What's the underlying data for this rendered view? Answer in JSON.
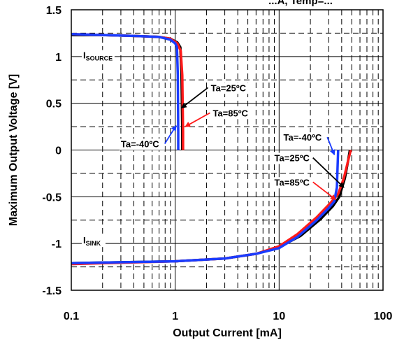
{
  "chart_data": {
    "type": "line",
    "title": "...A, Temp=...",
    "xlabel": "Output Current [mA]",
    "ylabel": "Maximum Output Voltage [V]",
    "xscale": "log",
    "xlim": [
      0.1,
      100
    ],
    "ylim": [
      -1.5,
      1.5
    ],
    "grid": true,
    "x_ticks": [
      "0.1",
      "1",
      "10",
      "100"
    ],
    "y_ticks": [
      "1.5",
      "1",
      "0.5",
      "0",
      "-0.5",
      "-1",
      "-1.5"
    ],
    "colors": {
      "-40": "#1a3cff",
      "25": "#000000",
      "85": "#ff1a1a"
    },
    "series": [
      {
        "name": "Ta=25ºC",
        "color": "#000000",
        "x": [
          0.1,
          0.2,
          0.4,
          0.7,
          0.9,
          1.05,
          1.12,
          1.15,
          1.17,
          1.17
        ],
        "y": [
          1.23,
          1.23,
          1.22,
          1.21,
          1.19,
          1.15,
          1.1,
          0.8,
          0.2,
          0
        ]
      },
      {
        "name": "Ta=85ºC",
        "color": "#ff1a1a",
        "x": [
          0.1,
          0.2,
          0.4,
          0.7,
          0.9,
          1.05,
          1.13,
          1.17,
          1.19,
          1.19
        ],
        "y": [
          1.24,
          1.23,
          1.22,
          1.21,
          1.19,
          1.14,
          1.06,
          0.8,
          0.2,
          0
        ]
      },
      {
        "name": "Ta=-40ºC",
        "color": "#1a3cff",
        "x": [
          0.1,
          0.2,
          0.4,
          0.7,
          0.9,
          1.0,
          1.04,
          1.06,
          1.07,
          1.07
        ],
        "y": [
          1.24,
          1.23,
          1.22,
          1.21,
          1.18,
          1.14,
          1.1,
          0.8,
          0.2,
          0
        ]
      }
    ],
    "sink_series": [
      {
        "name": "Ta=25ºC",
        "color": "#000000",
        "x": [
          0.1,
          1,
          3,
          6,
          10,
          16,
          25,
          33,
          38,
          43,
          46,
          48
        ],
        "y": [
          -1.21,
          -1.19,
          -1.16,
          -1.11,
          -1.04,
          -0.92,
          -0.74,
          -0.6,
          -0.5,
          -0.3,
          -0.12,
          0
        ]
      },
      {
        "name": "Ta=85ºC",
        "color": "#ff1a1a",
        "x": [
          0.1,
          1,
          3,
          6,
          10,
          15,
          23,
          31,
          37,
          42,
          46,
          49
        ],
        "y": [
          -1.22,
          -1.19,
          -1.16,
          -1.11,
          -1.03,
          -0.9,
          -0.72,
          -0.57,
          -0.47,
          -0.3,
          -0.12,
          0
        ]
      },
      {
        "name": "Ta=-40ºC",
        "color": "#1a3cff",
        "x": [
          0.1,
          1,
          3,
          6,
          10,
          15,
          23,
          30,
          34,
          36,
          36.5,
          37
        ],
        "y": [
          -1.21,
          -1.19,
          -1.16,
          -1.11,
          -1.05,
          -0.93,
          -0.75,
          -0.62,
          -0.55,
          -0.4,
          -0.2,
          0
        ]
      }
    ],
    "annotations": [
      {
        "text": "Ta=25ºC",
        "x": 2.2,
        "y": 0.63,
        "arrow_to": [
          1.15,
          0.45
        ]
      },
      {
        "text": "Ta=85ºC",
        "x": 2.3,
        "y": 0.36,
        "arrow_to": [
          1.25,
          0.25
        ]
      },
      {
        "text": "Ta=-40ºC",
        "x": 0.3,
        "y": 0.03,
        "arrow_to": [
          1.02,
          0.26
        ]
      },
      {
        "text": "Ta=-40ºC",
        "x": 11,
        "y": 0.1,
        "arrow_to": [
          34,
          -0.05
        ]
      },
      {
        "text": "Ta=25ºC",
        "x": 9,
        "y": -0.12,
        "arrow_to": [
          42,
          -0.4
        ]
      },
      {
        "text": "Ta=85ºC",
        "x": 9,
        "y": -0.38,
        "arrow_to": [
          35,
          -0.53
        ]
      }
    ],
    "labels": [
      {
        "main": "I",
        "sub": "SOURCE",
        "x": 0.13,
        "y": 0.98
      },
      {
        "main": "I",
        "sub": "SINK",
        "x": 0.13,
        "y": -1.0
      }
    ]
  }
}
